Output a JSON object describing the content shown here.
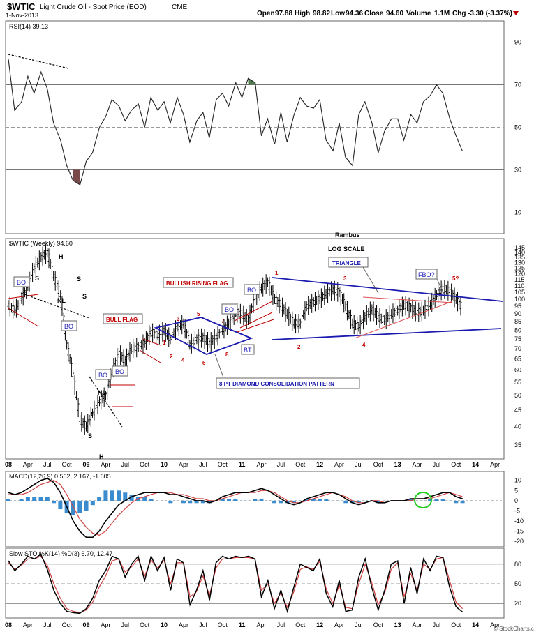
{
  "header": {
    "symbol": "$WTIC",
    "name": "Light Crude Oil - Spot Price (EOD)",
    "exchange": "CME",
    "date": "1-Nov-2013",
    "open_label": "Open",
    "open": "97.88",
    "high_label": "High",
    "high": "98.82",
    "low_label": "Low",
    "low": "94.36",
    "close_label": "Close",
    "close": "94.60",
    "volume_label": "Volume",
    "volume": "1.1M",
    "chg_label": "Chg",
    "chg": "-3.30 (-3.37%)",
    "watermark": "© StockCharts.com",
    "author": "Rambus"
  },
  "colors": {
    "red": "#c00000",
    "blue": "#1a1ab0",
    "green": "#22cc22",
    "overbought": "#4f7a4f",
    "oversold": "#7a4a4a"
  },
  "x_axis": {
    "labels": [
      "08",
      "Apr",
      "Jul",
      "Oct",
      "09",
      "Apr",
      "Jul",
      "Oct",
      "10",
      "Apr",
      "Jul",
      "Oct",
      "11",
      "Apr",
      "Jul",
      "Oct",
      "12",
      "Apr",
      "Jul",
      "Oct",
      "13",
      "Apr",
      "Jul",
      "Oct",
      "14",
      "Apr"
    ]
  },
  "chart_data": [
    {
      "type": "line",
      "panel": "RSI",
      "title": "RSI(14) 39.13",
      "ylim": [
        0,
        100
      ],
      "y_ticks": [
        90,
        70,
        50,
        30,
        10
      ],
      "reference_lines": [
        70,
        50,
        30
      ],
      "x_range": [
        2008.0,
        2014.33
      ],
      "series": [
        {
          "name": "RSI(14)",
          "x": [
            2008.0,
            2008.08,
            2008.17,
            2008.25,
            2008.33,
            2008.42,
            2008.5,
            2008.58,
            2008.67,
            2008.75,
            2008.83,
            2008.92,
            2009.0,
            2009.08,
            2009.17,
            2009.25,
            2009.33,
            2009.42,
            2009.5,
            2009.58,
            2009.67,
            2009.75,
            2009.83,
            2009.92,
            2010.0,
            2010.08,
            2010.17,
            2010.25,
            2010.33,
            2010.42,
            2010.5,
            2010.58,
            2010.67,
            2010.75,
            2010.83,
            2010.92,
            2011.0,
            2011.08,
            2011.17,
            2011.25,
            2011.33,
            2011.42,
            2011.5,
            2011.58,
            2011.67,
            2011.75,
            2011.83,
            2011.92,
            2012.0,
            2012.08,
            2012.17,
            2012.25,
            2012.33,
            2012.42,
            2012.5,
            2012.58,
            2012.67,
            2012.75,
            2012.83,
            2012.92,
            2013.0,
            2013.08,
            2013.17,
            2013.25,
            2013.33,
            2013.42,
            2013.5,
            2013.58,
            2013.67,
            2013.75,
            2013.83
          ],
          "values": [
            82,
            58,
            62,
            74,
            66,
            76,
            68,
            52,
            44,
            32,
            25,
            23,
            34,
            38,
            50,
            55,
            63,
            60,
            53,
            58,
            61,
            50,
            64,
            58,
            62,
            52,
            64,
            56,
            43,
            53,
            57,
            45,
            63,
            66,
            60,
            71,
            64,
            73,
            71,
            46,
            54,
            42,
            57,
            43,
            56,
            64,
            60,
            59,
            63,
            44,
            39,
            52,
            36,
            32,
            56,
            62,
            52,
            38,
            48,
            54,
            54,
            44,
            56,
            52,
            62,
            65,
            70,
            66,
            54,
            46,
            39
          ]
        }
      ]
    },
    {
      "type": "candlestick",
      "panel": "Price",
      "title": "$WTIC (Weekly) 94.60",
      "scale": "log",
      "ylim": [
        32,
        150
      ],
      "y_ticks": [
        145,
        140,
        135,
        130,
        125,
        120,
        115,
        110,
        105,
        100,
        95,
        90,
        85,
        80,
        75,
        70,
        65,
        60,
        55,
        50,
        45,
        40,
        35
      ],
      "x_range": [
        2008.0,
        2014.33
      ],
      "series": [
        {
          "name": "$WTIC",
          "x": [
            2008.0,
            2008.08,
            2008.17,
            2008.25,
            2008.33,
            2008.42,
            2008.5,
            2008.58,
            2008.67,
            2008.75,
            2008.83,
            2008.92,
            2009.0,
            2009.08,
            2009.17,
            2009.25,
            2009.33,
            2009.42,
            2009.5,
            2009.58,
            2009.67,
            2009.75,
            2009.83,
            2009.92,
            2010.0,
            2010.08,
            2010.17,
            2010.25,
            2010.33,
            2010.42,
            2010.5,
            2010.58,
            2010.67,
            2010.75,
            2010.83,
            2010.92,
            2011.0,
            2011.08,
            2011.17,
            2011.25,
            2011.33,
            2011.42,
            2011.5,
            2011.58,
            2011.67,
            2011.75,
            2011.83,
            2011.92,
            2012.0,
            2012.08,
            2012.17,
            2012.25,
            2012.33,
            2012.42,
            2012.5,
            2012.58,
            2012.67,
            2012.75,
            2012.83,
            2012.92,
            2013.0,
            2013.08,
            2013.17,
            2013.25,
            2013.33,
            2013.42,
            2013.5,
            2013.58,
            2013.67,
            2013.75,
            2013.83
          ],
          "values": [
            96,
            92,
            100,
            110,
            125,
            135,
            140,
            118,
            103,
            72,
            58,
            42,
            40,
            44,
            48,
            50,
            59,
            68,
            64,
            70,
            71,
            73,
            79,
            77,
            80,
            75,
            82,
            84,
            72,
            75,
            76,
            73,
            76,
            80,
            84,
            91,
            90,
            86,
            101,
            108,
            113,
            100,
            96,
            90,
            84,
            84,
            95,
            98,
            100,
            104,
            107,
            105,
            95,
            84,
            82,
            88,
            93,
            88,
            86,
            90,
            92,
            96,
            94,
            91,
            92,
            96,
            103,
            108,
            106,
            100,
            94
          ]
        }
      ],
      "annotations": [
        "BO",
        "NL",
        "H",
        "S",
        "S",
        "S",
        "BO",
        "BO",
        "BO",
        "S",
        "NL",
        "S",
        "H",
        "BULL FLAG",
        "1",
        "2",
        "3",
        "4",
        "5",
        "6",
        "7",
        "8",
        "BO",
        "BULLISH RISING FLAG",
        "BO",
        "BT",
        "8 PT DIAMOND CONSOLIDATION PATTERN",
        "1",
        "2",
        "3",
        "4",
        "LOG SCALE",
        "TRIANGLE",
        "FBO?",
        "5?"
      ]
    },
    {
      "type": "line",
      "panel": "MACD",
      "title": "MACD(12,26,9) 0.562, 2.167, -1.605",
      "ylim": [
        -22,
        13
      ],
      "y_ticks": [
        10,
        5,
        0,
        -5,
        -10,
        -15,
        -20
      ],
      "x_range": [
        2008.0,
        2014.33
      ],
      "series": [
        {
          "name": "MACD(12,26,9)",
          "values": [
            4,
            3,
            4,
            6,
            8,
            10,
            11,
            9,
            4,
            -3,
            -10,
            -15,
            -18,
            -18,
            -15,
            -10,
            -6,
            -2,
            0,
            2,
            3,
            4,
            4,
            4,
            4,
            3,
            3,
            2,
            1,
            0,
            0,
            -1,
            0,
            2,
            3,
            4,
            4,
            4,
            5,
            6,
            5,
            3,
            1,
            -1,
            -2,
            -1,
            1,
            2,
            3,
            4,
            4,
            3,
            1,
            -1,
            -2,
            -1,
            0,
            -1,
            -1,
            0,
            0,
            0,
            1,
            1,
            1,
            2,
            3,
            4,
            4,
            2,
            1
          ]
        },
        {
          "name": "Signal",
          "values": [
            3,
            3,
            3,
            4,
            6,
            8,
            9,
            10,
            8,
            3,
            -3,
            -9,
            -13,
            -16,
            -17,
            -15,
            -11,
            -7,
            -4,
            -1,
            1,
            2,
            3,
            4,
            4,
            4,
            3,
            3,
            2,
            1,
            1,
            0,
            0,
            1,
            2,
            3,
            4,
            4,
            4,
            5,
            5,
            4,
            2,
            0,
            -1,
            -1,
            0,
            1,
            2,
            3,
            4,
            3,
            2,
            0,
            -1,
            -1,
            0,
            0,
            -1,
            0,
            0,
            0,
            0,
            1,
            1,
            1,
            2,
            3,
            4,
            3,
            2
          ]
        }
      ]
    },
    {
      "type": "line",
      "panel": "Slow STO",
      "title": "Slow STO %K(14) %D(3) 6.70, 12.47",
      "ylim": [
        0,
        100
      ],
      "y_ticks": [
        80,
        50,
        20
      ],
      "reference_lines": [
        80,
        50,
        20
      ],
      "x_range": [
        2008.0,
        2014.33
      ],
      "series": [
        {
          "name": "%K(14)",
          "values": [
            85,
            70,
            80,
            92,
            88,
            95,
            72,
            40,
            20,
            8,
            6,
            5,
            12,
            28,
            55,
            70,
            92,
            88,
            60,
            80,
            92,
            55,
            92,
            70,
            90,
            40,
            88,
            82,
            18,
            40,
            70,
            25,
            82,
            92,
            88,
            92,
            90,
            92,
            88,
            30,
            55,
            12,
            40,
            8,
            45,
            80,
            75,
            70,
            88,
            35,
            15,
            55,
            8,
            10,
            60,
            88,
            45,
            10,
            40,
            80,
            85,
            20,
            75,
            35,
            88,
            70,
            92,
            90,
            45,
            15,
            7
          ]
        },
        {
          "name": "%D(3)",
          "values": [
            82,
            72,
            78,
            88,
            88,
            92,
            78,
            50,
            28,
            12,
            8,
            6,
            10,
            22,
            45,
            62,
            85,
            88,
            68,
            76,
            88,
            62,
            86,
            74,
            86,
            50,
            82,
            82,
            30,
            38,
            62,
            32,
            74,
            88,
            88,
            90,
            90,
            90,
            88,
            40,
            50,
            20,
            36,
            14,
            38,
            72,
            76,
            72,
            84,
            42,
            20,
            48,
            14,
            12,
            50,
            80,
            52,
            18,
            36,
            72,
            82,
            30,
            66,
            40,
            80,
            72,
            88,
            90,
            55,
            22,
            12
          ]
        }
      ]
    }
  ]
}
